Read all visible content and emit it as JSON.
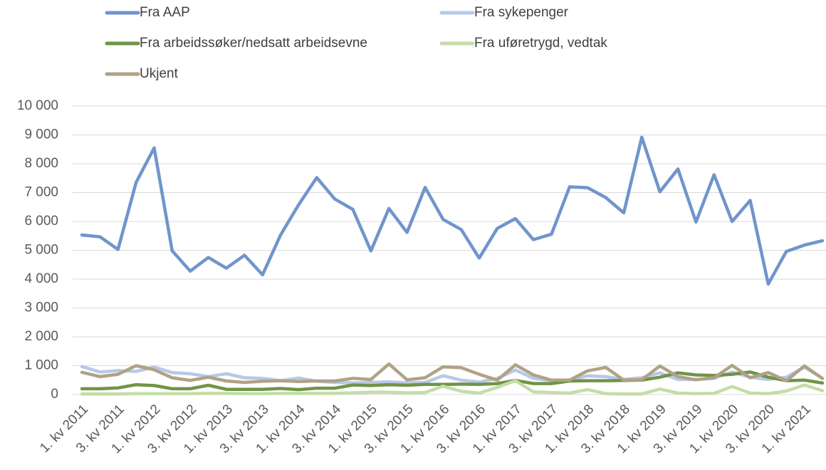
{
  "chart_data": {
    "type": "line",
    "categories": [
      "1. kv 2011",
      null,
      "3. kv 2011",
      null,
      "1. kv 2012",
      null,
      "3. kv 2012",
      null,
      "1. kv 2013",
      null,
      "3. kv 2013",
      null,
      "1. kv 2014",
      null,
      "3. kv 2014",
      null,
      "1. kv 2015",
      null,
      "3. kv 2015",
      null,
      "1. kv 2016",
      null,
      "3. kv 2016",
      null,
      "1. kv 2017",
      null,
      "3. kv 2017",
      null,
      "1. kv 2018",
      null,
      "3. kv 2018",
      null,
      "1. kv 2019",
      null,
      "3. kv 2019",
      null,
      "1. kv 2020",
      null,
      "3. kv 2020",
      null,
      "1. kv 2021",
      null
    ],
    "series": [
      {
        "name": "Fra AAP",
        "color": "#7095cb",
        "values": [
          5530,
          5470,
          5030,
          7350,
          8550,
          4980,
          4280,
          4750,
          4380,
          4830,
          4150,
          5530,
          6580,
          7520,
          6780,
          6420,
          4980,
          6450,
          5620,
          7180,
          6070,
          5720,
          4730,
          5760,
          6100,
          5370,
          5560,
          7200,
          7170,
          6830,
          6300,
          8920,
          7030,
          7820,
          5980,
          7620,
          6000,
          6730,
          3830,
          4960,
          5180,
          5330
        ]
      },
      {
        "name": "Fra sykepenger",
        "color": "#b7c8e8",
        "values": [
          970,
          780,
          830,
          800,
          950,
          760,
          720,
          620,
          720,
          580,
          560,
          480,
          570,
          460,
          420,
          400,
          420,
          440,
          400,
          420,
          650,
          500,
          430,
          560,
          850,
          560,
          480,
          500,
          650,
          620,
          520,
          580,
          750,
          520,
          520,
          560,
          780,
          600,
          520,
          600,
          950,
          560
        ]
      },
      {
        "name": "Fra arbeidssøker/nedsatt arbeidsevne",
        "color": "#6f9447",
        "values": [
          200,
          200,
          230,
          340,
          310,
          200,
          200,
          320,
          180,
          180,
          180,
          210,
          170,
          220,
          220,
          330,
          310,
          340,
          320,
          350,
          350,
          360,
          350,
          380,
          490,
          380,
          380,
          470,
          480,
          480,
          490,
          500,
          600,
          750,
          680,
          660,
          700,
          780,
          600,
          480,
          500,
          400
        ]
      },
      {
        "name": "Fra uføretrygd, vedtak",
        "color": "#c5dca8",
        "values": [
          20,
          20,
          20,
          30,
          30,
          30,
          30,
          40,
          40,
          30,
          30,
          40,
          40,
          40,
          40,
          60,
          80,
          80,
          60,
          70,
          290,
          110,
          50,
          250,
          480,
          90,
          70,
          50,
          170,
          30,
          20,
          20,
          190,
          50,
          30,
          40,
          280,
          50,
          30,
          120,
          330,
          130
        ]
      },
      {
        "name": "Ukjent",
        "color": "#b0a285",
        "values": [
          770,
          620,
          700,
          1000,
          860,
          580,
          490,
          600,
          470,
          420,
          460,
          480,
          450,
          470,
          470,
          560,
          520,
          1060,
          510,
          580,
          960,
          930,
          700,
          500,
          1030,
          680,
          500,
          500,
          820,
          940,
          500,
          510,
          990,
          620,
          510,
          580,
          1010,
          580,
          760,
          480,
          990,
          560
        ]
      }
    ],
    "ylim": [
      0,
      10000
    ],
    "yticks": [
      0,
      {
        "value": 1000,
        "label": "1 000"
      },
      {
        "value": 2000,
        "label": "2 000"
      },
      {
        "value": 3000,
        "label": "3 000"
      },
      {
        "value": 4000,
        "label": "4 000"
      },
      {
        "value": 5000,
        "label": "5 000"
      },
      {
        "value": 6000,
        "label": "6 000"
      },
      {
        "value": 7000,
        "label": "7 000"
      },
      {
        "value": 8000,
        "label": "8 000"
      },
      {
        "value": 9000,
        "label": "9 000"
      },
      {
        "value": 10000,
        "label": "10 000"
      }
    ],
    "grid": true
  }
}
